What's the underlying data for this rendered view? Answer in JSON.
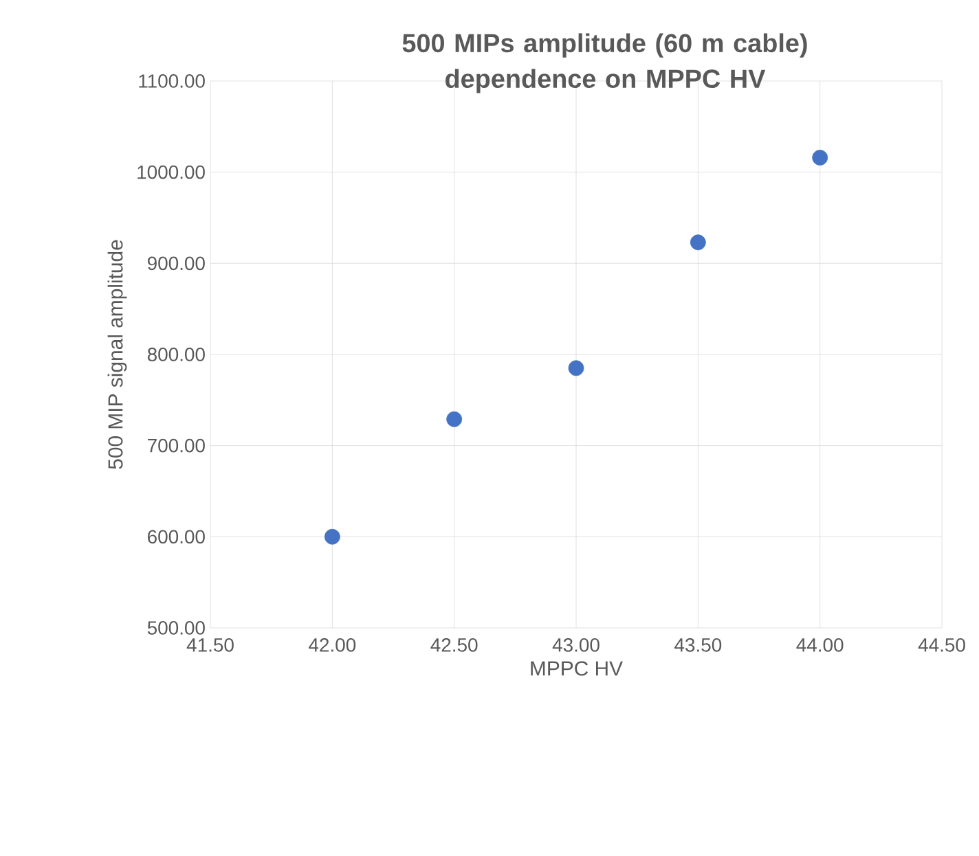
{
  "chart_data": {
    "type": "scatter",
    "title": "500 MIPs amplitude (60 m cable) dependence on MPPC HV",
    "xlabel": "MPPC HV",
    "ylabel": "500 MIP signal amplitude",
    "series": [
      {
        "color": "#4472c4",
        "x": [
          42.0,
          42.5,
          43.0,
          43.5,
          44.0
        ],
        "values": [
          600,
          729,
          785,
          923,
          1016
        ]
      }
    ],
    "xlim": [
      41.5,
      44.5
    ],
    "ylim": [
      500,
      1100
    ],
    "xticks": [
      {
        "value": 41.5,
        "label": "41.50"
      },
      {
        "value": 42.0,
        "label": "42.00"
      },
      {
        "value": 42.5,
        "label": "42.50"
      },
      {
        "value": 43.0,
        "label": "43.00"
      },
      {
        "value": 43.5,
        "label": "43.50"
      },
      {
        "value": 44.0,
        "label": "44.00"
      },
      {
        "value": 44.5,
        "label": "44.50"
      }
    ],
    "yticks": [
      {
        "value": 500,
        "label": "500.00"
      },
      {
        "value": 600,
        "label": "600.00"
      },
      {
        "value": 700,
        "label": "700.00"
      },
      {
        "value": 800,
        "label": "800.00"
      },
      {
        "value": 900,
        "label": "900.00"
      },
      {
        "value": 1000,
        "label": "1000.00"
      },
      {
        "value": 1100,
        "label": "1100.00"
      }
    ],
    "grid": true,
    "marker": "circle"
  }
}
